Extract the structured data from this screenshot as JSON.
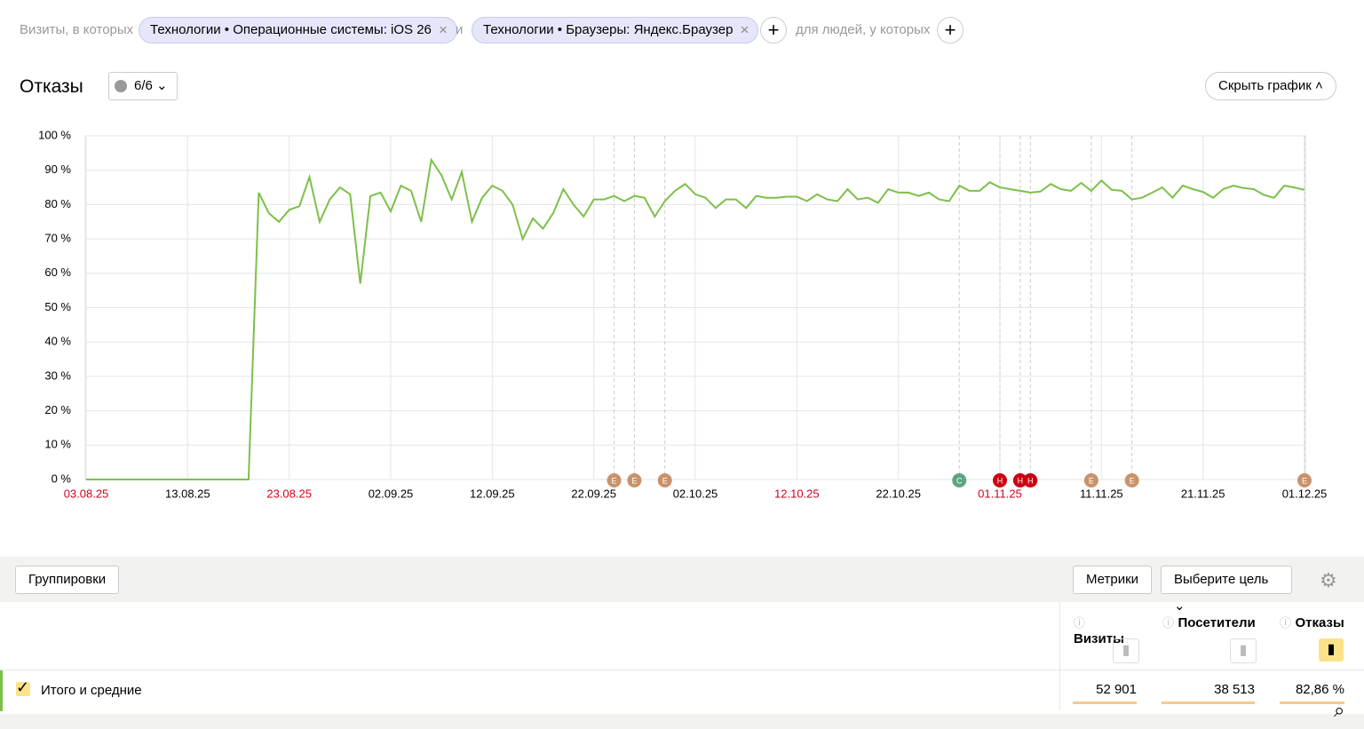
{
  "filters": {
    "prefix": "Визиты, в которых",
    "chips": [
      "Технологии • Операционные системы: iOS 26",
      "Технологии • Браузеры: Яндекс.Браузер"
    ],
    "joiner": "и",
    "people": "для людей, у которых"
  },
  "header": {
    "title": "Отказы",
    "annotations_count": "6/6",
    "hide_button": "Скрыть график"
  },
  "chart_data": {
    "type": "line",
    "color": "#7cc04a",
    "grid": true,
    "ylim": [
      0,
      100
    ],
    "yticks": [
      {
        "value": 0,
        "label": "0 %"
      },
      {
        "value": 10,
        "label": "10 %"
      },
      {
        "value": 20,
        "label": "20 %"
      },
      {
        "value": 30,
        "label": "30 %"
      },
      {
        "value": 40,
        "label": "40 %"
      },
      {
        "value": 50,
        "label": "50 %"
      },
      {
        "value": 60,
        "label": "60 %"
      },
      {
        "value": 70,
        "label": "70 %"
      },
      {
        "value": 80,
        "label": "80 %"
      },
      {
        "value": 90,
        "label": "90 %"
      },
      {
        "value": 100,
        "label": "100 %"
      }
    ],
    "categories": [
      "03.08.25",
      null,
      null,
      null,
      null,
      null,
      null,
      null,
      null,
      null,
      "13.08.25",
      null,
      null,
      null,
      null,
      null,
      null,
      null,
      null,
      null,
      "23.08.25",
      null,
      null,
      null,
      null,
      null,
      null,
      null,
      null,
      null,
      "02.09.25",
      null,
      null,
      null,
      null,
      null,
      null,
      null,
      null,
      null,
      "12.09.25",
      null,
      null,
      null,
      null,
      null,
      null,
      null,
      null,
      null,
      "22.09.25",
      null,
      null,
      null,
      null,
      null,
      null,
      null,
      null,
      null,
      "02.10.25",
      null,
      null,
      null,
      null,
      null,
      null,
      null,
      null,
      null,
      "12.10.25",
      null,
      null,
      null,
      null,
      null,
      null,
      null,
      null,
      null,
      "22.10.25",
      null,
      null,
      null,
      null,
      null,
      null,
      null,
      null,
      null,
      "01.11.25",
      null,
      null,
      null,
      null,
      null,
      null,
      null,
      null,
      null,
      "11.11.25",
      null,
      null,
      null,
      null,
      null,
      null,
      null,
      null,
      null,
      "21.11.25",
      null,
      null,
      null,
      null,
      null,
      null,
      null,
      null,
      null,
      "01.12.25"
    ],
    "values": [
      0,
      0,
      0,
      0,
      0,
      0,
      0,
      0,
      0,
      0,
      0,
      0,
      0,
      0,
      0,
      0,
      0,
      83.5,
      77.5,
      75,
      78.5,
      79.5,
      88,
      75,
      81.5,
      85,
      83,
      57,
      82.5,
      83.5,
      78,
      85.5,
      84,
      75,
      93,
      88.5,
      81.5,
      89.5,
      75,
      82,
      85.5,
      84,
      80,
      70,
      76,
      73,
      77.5,
      84.5,
      80,
      76.5,
      81.5,
      81.5,
      82.5,
      81,
      82.5,
      82,
      76.5,
      81,
      84,
      86,
      83,
      82,
      79,
      81.5,
      81.5,
      79,
      82.5,
      82,
      82,
      82.3,
      82.3,
      81,
      83,
      81.5,
      81,
      84.5,
      81.5,
      82,
      80.5,
      84.5,
      83.5,
      83.5,
      82.5,
      83.5,
      81.5,
      81,
      85.5,
      84,
      84,
      86.5,
      85,
      84.5,
      84,
      83.5,
      83.8,
      86,
      84.5,
      84,
      86.3,
      84,
      87,
      84.3,
      84,
      81.5,
      82,
      83.5,
      85,
      82,
      85.5,
      84.5,
      83.7,
      82,
      84.5,
      85.5,
      84.8,
      84.5,
      82.8,
      82,
      85.5,
      85,
      84.3
    ],
    "annotations": [
      {
        "index": 52,
        "label": "Е"
      },
      {
        "index": 54,
        "label": "Е"
      },
      {
        "index": 57,
        "label": "Е"
      },
      {
        "index": 86,
        "label": "С"
      },
      {
        "index": 90,
        "label": "Н"
      },
      {
        "index": 92,
        "label": "Н"
      },
      {
        "index": 93,
        "label": "Н"
      },
      {
        "index": 99,
        "label": "Е"
      },
      {
        "index": 103,
        "label": "Е"
      },
      {
        "index": 120,
        "label": "Е"
      }
    ]
  },
  "toolbar": {
    "groupings": "Группировки",
    "metrics": "Метрики",
    "goal": "Выберите цель"
  },
  "table": {
    "columns": [
      "Визиты",
      "Посетители",
      "Отказы"
    ],
    "rows": [
      [
        "Итого и средние",
        "52 901",
        "38 513",
        "82,86 %"
      ]
    ]
  }
}
